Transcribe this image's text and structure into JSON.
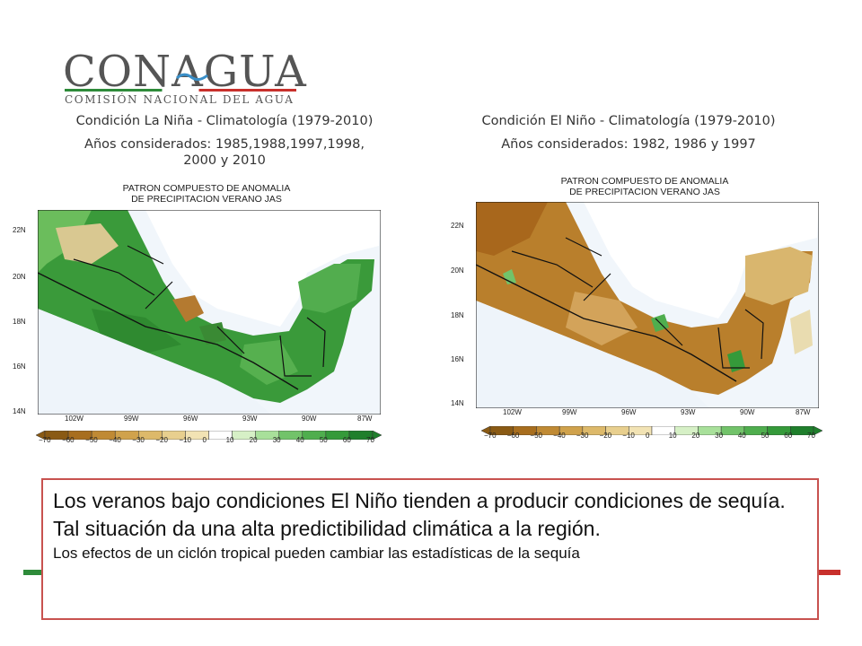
{
  "logo": {
    "title": "CONAGUA",
    "subtitle": "COMISIÓN NACIONAL DEL AGUA",
    "line_colors": [
      "#2e8b3a",
      "#ffffff",
      "#c8302c"
    ]
  },
  "left": {
    "caption_line1": "Condición La Niña - Climatología (1979-2010)",
    "caption_line2": "Años considerados: 1985,1988,1997,1998,",
    "caption_line3": "2000 y 2010",
    "map_title_line1": "PATRON COMPUESTO DE ANOMALIA",
    "map_title_line2": "DE PRECIPITACION VERANO JAS",
    "dominant_color": "#3a9a3a"
  },
  "right": {
    "caption_line1": "Condición El Niño - Climatología (1979-2010)",
    "caption_line2": "Años considerados: 1982, 1986 y 1997",
    "map_title_line1": "PATRON COMPUESTO DE ANOMALIA",
    "map_title_line2": "DE PRECIPITACION VERANO JAS",
    "dominant_color": "#b97f2c"
  },
  "axes": {
    "lat_labels": [
      "22N",
      "20N",
      "18N",
      "16N",
      "14N"
    ],
    "lon_labels": [
      "102W",
      "99W",
      "96W",
      "93W",
      "90W",
      "87W"
    ]
  },
  "scale": {
    "labels": [
      "−70",
      "−60",
      "−50",
      "−40",
      "−30",
      "−20",
      "−10",
      "0",
      "10",
      "20",
      "30",
      "40",
      "50",
      "60",
      "70"
    ],
    "colors": [
      "#8a5a14",
      "#a86e1e",
      "#c08a34",
      "#d0a24c",
      "#ddb96a",
      "#e8cf8e",
      "#f2e3b4",
      "#ffffff",
      "#d6f0c6",
      "#a8e09a",
      "#72c36a",
      "#4fae4e",
      "#359a3a",
      "#1f7f2c"
    ]
  },
  "textbox": {
    "line1": "Los veranos bajo condiciones El Niño tienden a producir condiciones de sequía.",
    "line2": "Tal situación da una alta predictibilidad climática a la región.",
    "line3": "Los efectos de un ciclón tropical pueden cambiar las estadísticas de la sequía"
  }
}
